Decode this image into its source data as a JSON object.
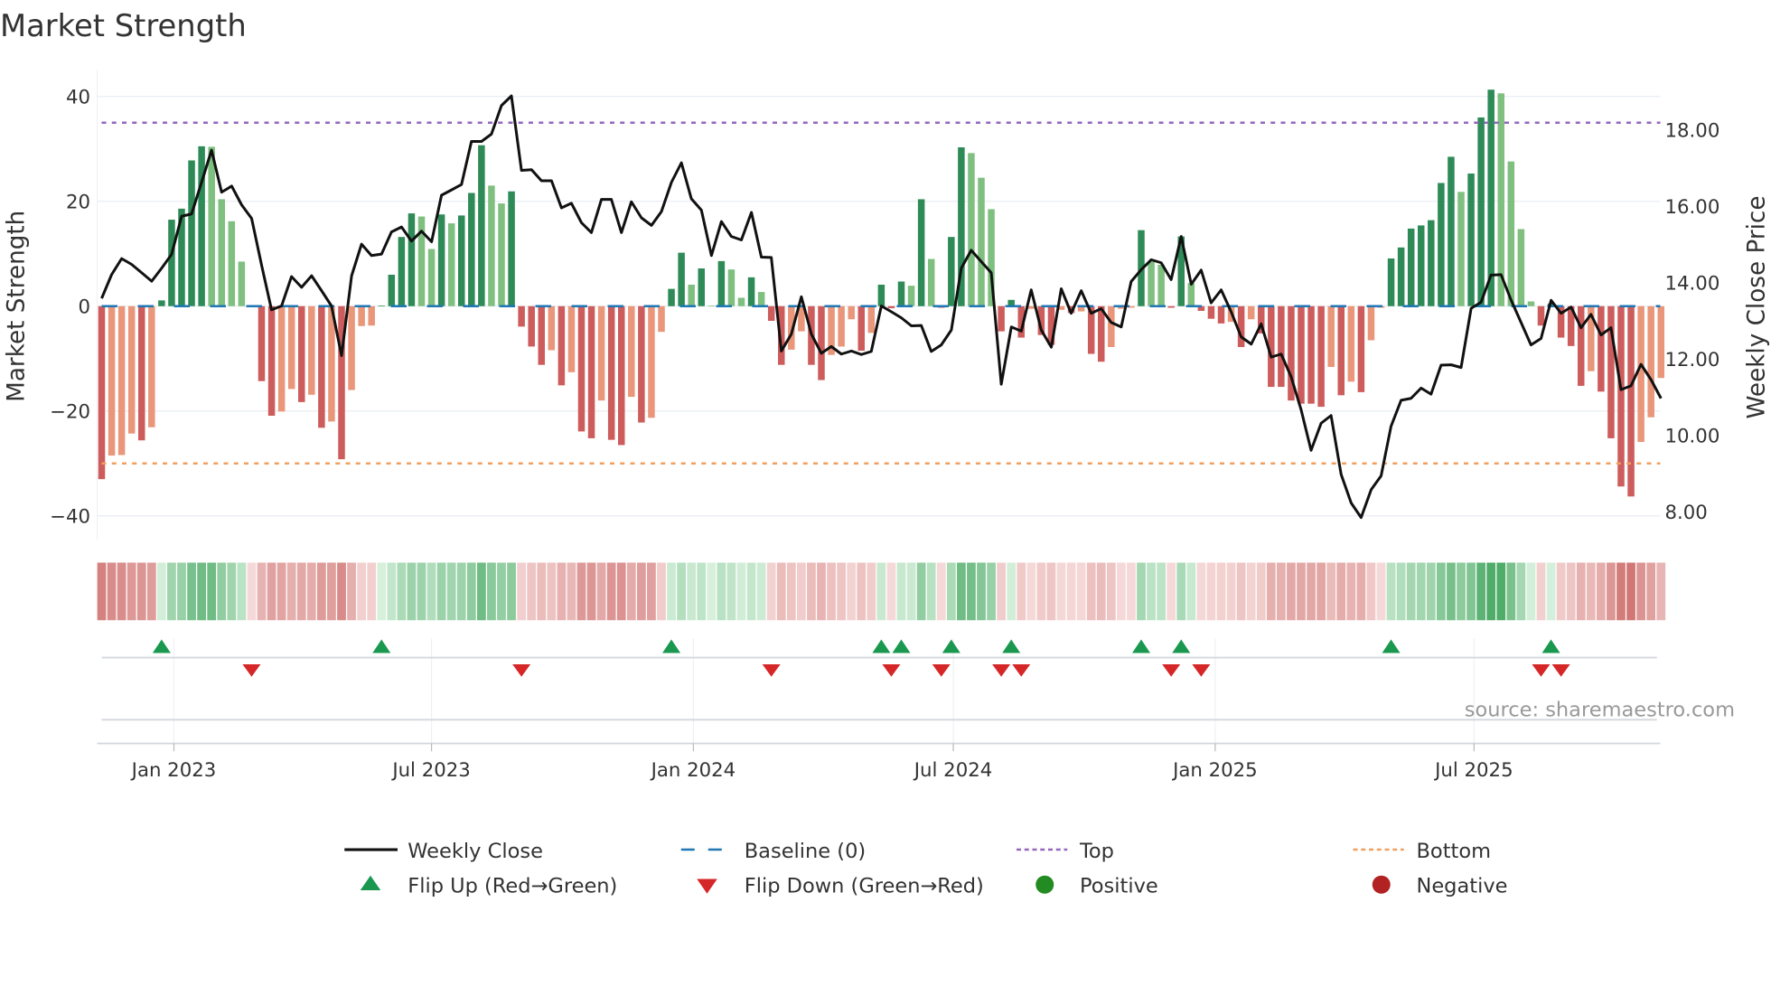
{
  "chart_data": {
    "type": "bar",
    "title": "Market Strength",
    "ylabel": "Market Strength",
    "y2label": "Weekly Close Price",
    "ylim": [
      -44,
      44
    ],
    "y2lim": [
      7.3,
      19.0
    ],
    "yticks": [
      {
        "v": 40,
        "label": "40"
      },
      {
        "v": 20,
        "label": "20"
      },
      {
        "v": 0,
        "label": "0"
      },
      {
        "v": -20,
        "label": "−20"
      },
      {
        "v": -40,
        "label": "−40"
      }
    ],
    "y2ticks": [
      {
        "v": 18,
        "label": "18.00"
      },
      {
        "v": 16,
        "label": "16.00"
      },
      {
        "v": 14,
        "label": "14.00"
      },
      {
        "v": 12,
        "label": "12.00"
      },
      {
        "v": 10,
        "label": "10.00"
      },
      {
        "v": 8,
        "label": "8.00"
      }
    ],
    "xticks": [
      {
        "week": 7.23,
        "label": "Jan 2023"
      },
      {
        "week": 33.0,
        "label": "Jul 2023"
      },
      {
        "week": 59.2,
        "label": "Jan 2024"
      },
      {
        "week": 85.2,
        "label": "Jul 2024"
      },
      {
        "week": 111.4,
        "label": "Jan 2025"
      },
      {
        "week": 137.3,
        "label": "Jul 2025"
      }
    ],
    "top_level": 35,
    "bottom_level": -30,
    "baseline": 0,
    "strength": [
      -33,
      -28.5,
      -28.4,
      -24.3,
      -25.6,
      -23.1,
      1.1,
      16.5,
      18.6,
      27.8,
      30.5,
      30.4,
      20.4,
      16.2,
      8.5,
      -0.2,
      -14.3,
      -20.9,
      -20.1,
      -15.8,
      -18.3,
      -16.9,
      -23.2,
      -22.0,
      -29.2,
      -16.0,
      -3.8,
      -3.7,
      0.1,
      6.0,
      13.2,
      17.7,
      17.1,
      10.9,
      17.5,
      15.8,
      17.3,
      21.6,
      30.7,
      23.0,
      19.6,
      21.9,
      -3.9,
      -7.7,
      -11.2,
      -8.4,
      -15.1,
      -12.6,
      -23.9,
      -25.2,
      -18.0,
      -25.5,
      -26.5,
      -17.3,
      -22.2,
      -21.3,
      -4.9,
      3.3,
      10.2,
      4.1,
      7.2,
      0.1,
      8.6,
      7.0,
      1.6,
      5.5,
      2.7,
      -2.8,
      -11.2,
      -8.3,
      -4.8,
      -11.2,
      -14.1,
      -9.3,
      -7.7,
      -2.5,
      -8.5,
      -5.1,
      4.1,
      -0.4,
      4.7,
      3.9,
      20.4,
      9.0,
      -0.3,
      13.2,
      30.3,
      29.2,
      24.5,
      18.5,
      -4.8,
      1.2,
      -6.0,
      -0.5,
      -5.5,
      -7.4,
      -0.7,
      -1.3,
      -1.0,
      -9.1,
      -10.6,
      -7.8,
      -0.5,
      -0.3,
      14.5,
      8.5,
      7.9,
      -0.3,
      13.3,
      4.4,
      -0.9,
      -2.4,
      -3.3,
      -3.0,
      -7.8,
      -2.5,
      -5.2,
      -15.4,
      -15.4,
      -18.0,
      -18.6,
      -18.6,
      -19.2,
      -11.6,
      -17.0,
      -14.4,
      -16.4,
      -6.5,
      -0.3,
      9.1,
      11.2,
      14.8,
      15.4,
      16.4,
      23.5,
      28.5,
      21.8,
      25.3,
      36.0,
      41.3,
      40.6,
      27.6,
      14.7,
      0.9,
      -3.7,
      0.5,
      -6.0,
      -7.6,
      -15.2,
      -12.4,
      -16.3,
      -25.2,
      -34.4,
      -36.3,
      -25.9,
      -21.2,
      -13.7
    ],
    "weekly_close": [
      13.56,
      14.18,
      14.6,
      14.45,
      14.23,
      14.01,
      14.35,
      14.71,
      15.71,
      15.77,
      16.6,
      17.44,
      16.34,
      16.5,
      16.01,
      15.65,
      14.43,
      13.26,
      13.36,
      14.13,
      13.85,
      14.15,
      13.76,
      13.36,
      12.06,
      14.15,
      14.98,
      14.68,
      14.72,
      15.3,
      15.43,
      15.06,
      15.32,
      15.04,
      16.26,
      16.4,
      16.54,
      17.67,
      17.67,
      17.86,
      18.61,
      18.86,
      16.91,
      16.93,
      16.64,
      16.64,
      15.93,
      16.05,
      15.54,
      15.28,
      16.15,
      16.15,
      15.28,
      16.09,
      15.67,
      15.47,
      15.83,
      16.6,
      17.11,
      16.17,
      15.87,
      14.68,
      15.57,
      15.18,
      15.09,
      15.81,
      14.64,
      14.63,
      12.18,
      12.62,
      13.6,
      12.62,
      12.12,
      12.3,
      12.1,
      12.18,
      12.09,
      12.17,
      13.36,
      13.21,
      13.05,
      12.84,
      12.85,
      12.17,
      12.34,
      12.73,
      14.35,
      14.82,
      14.52,
      14.23,
      11.31,
      12.81,
      12.7,
      13.78,
      12.73,
      12.28,
      13.81,
      13.17,
      13.76,
      13.17,
      13.29,
      12.93,
      12.81,
      14.0,
      14.31,
      14.57,
      14.49,
      14.05,
      15.18,
      13.93,
      14.3,
      13.44,
      13.78,
      13.21,
      12.55,
      12.36,
      12.89,
      12.02,
      12.1,
      11.51,
      10.64,
      9.58,
      10.29,
      10.49,
      8.95,
      8.2,
      7.82,
      8.55,
      8.91,
      10.21,
      10.89,
      10.94,
      11.21,
      11.05,
      11.81,
      11.82,
      11.75,
      13.3,
      13.46,
      14.17,
      14.18,
      13.52,
      12.93,
      12.34,
      12.51,
      13.51,
      13.17,
      13.33,
      12.79,
      13.14,
      12.6,
      12.79,
      11.17,
      11.27,
      11.83,
      11.43,
      10.94
    ],
    "flip_up_weeks": [
      6,
      28,
      57,
      78,
      80,
      85,
      91,
      104,
      108,
      129,
      145
    ],
    "flip_down_weeks": [
      15,
      42,
      67,
      79,
      84,
      90,
      92,
      107,
      110,
      144,
      146
    ],
    "legend": {
      "placement": "bottom",
      "entries": [
        {
          "label": "Weekly Close",
          "kind": "line"
        },
        {
          "label": "Baseline (0)",
          "kind": "baseline"
        },
        {
          "label": "Top",
          "kind": "top"
        },
        {
          "label": "Bottom",
          "kind": "bottom"
        },
        {
          "label": "Flip Up (Red→Green)",
          "kind": "up"
        },
        {
          "label": "Flip Down (Green→Red)",
          "kind": "down"
        },
        {
          "label": "Positive",
          "kind": "pos"
        },
        {
          "label": "Negative",
          "kind": "neg"
        }
      ]
    },
    "source": "source: sharemaestro.com",
    "colors": {
      "pos_rising": "#2e8b57",
      "pos_falling": "#7fbf7f",
      "neg_falling": "#cd5c5c",
      "neg_rising": "#e9967a",
      "line": "#111111",
      "baseline": "#1f77b4",
      "top": "#9467bd",
      "bottom": "#f0a060",
      "flip_up": "#1a9850",
      "flip_down": "#d62728",
      "positive": "#228b22",
      "negative": "#b22222"
    }
  }
}
